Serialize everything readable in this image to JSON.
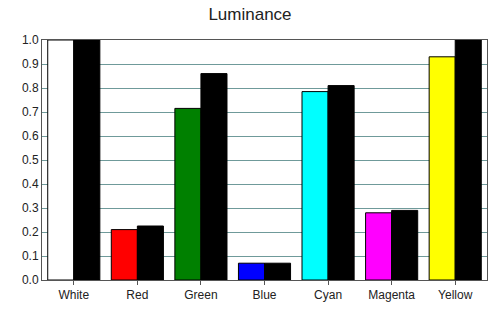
{
  "chart_data": {
    "type": "bar",
    "title": "Luminance",
    "categories": [
      "White",
      "Red",
      "Green",
      "Blue",
      "Cyan",
      "Magenta",
      "Yellow"
    ],
    "series": [
      {
        "colors": [
          "#ffffff",
          "#ff0000",
          "#008000",
          "#0000ff",
          "#00ffff",
          "#ff00ff",
          "#ffff00"
        ],
        "values": [
          1.0,
          0.21,
          0.715,
          0.07,
          0.785,
          0.28,
          0.93
        ]
      },
      {
        "color": "#000000",
        "values": [
          1.0,
          0.225,
          0.86,
          0.07,
          0.81,
          0.29,
          1.0
        ]
      }
    ],
    "ylim": [
      0,
      1
    ],
    "yticks": [
      {
        "value": 0,
        "label": "0.0"
      },
      0.1,
      0.2,
      0.3,
      0.4,
      0.5,
      0.6,
      0.7,
      0.8,
      0.9,
      {
        "value": 1,
        "label": "1.0"
      }
    ],
    "grid": true
  }
}
